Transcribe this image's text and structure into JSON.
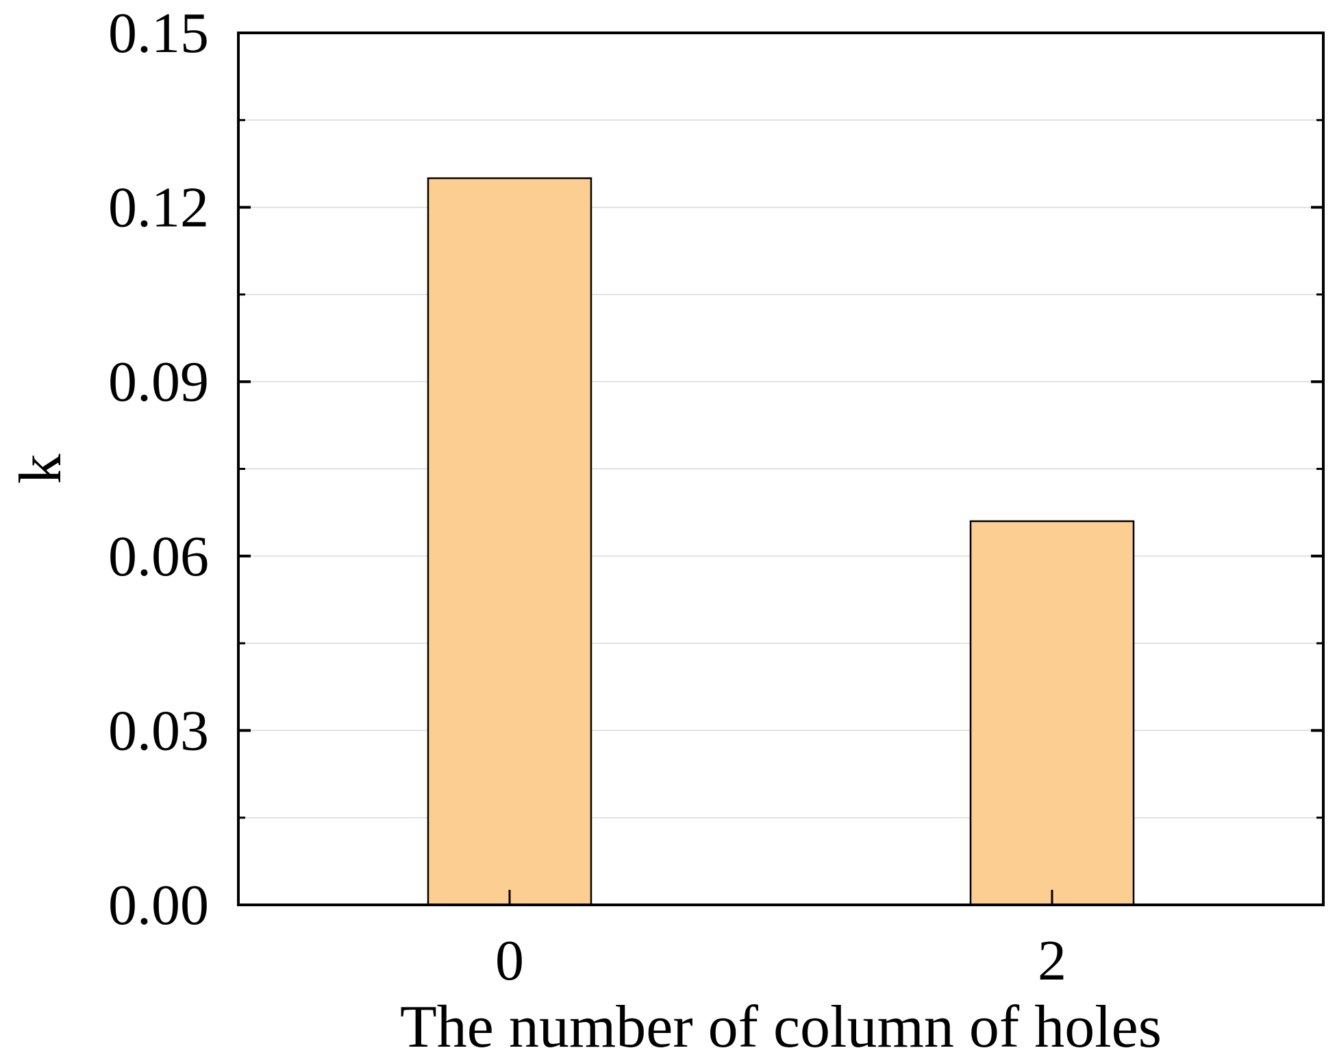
{
  "chart_data": {
    "type": "bar",
    "categories": [
      "0",
      "2"
    ],
    "values": [
      0.125,
      0.066
    ],
    "title": "",
    "xlabel": "The number of column of holes",
    "ylabel": "k",
    "ylim": [
      0,
      0.15
    ],
    "yticks": [
      "0.00",
      "0.03",
      "0.06",
      "0.09",
      "0.12",
      "0.15"
    ],
    "ytick_values": [
      0,
      0.03,
      0.06,
      0.09,
      0.12,
      0.15
    ],
    "minor_ytick_values": [
      0.015,
      0.045,
      0.075,
      0.105,
      0.135
    ],
    "grid": true,
    "legend": "none",
    "colors": {
      "bar_fill": "#FDCE91",
      "bar_stroke": "#000000",
      "grid": "#D9D9D9",
      "axis": "#000000"
    }
  }
}
